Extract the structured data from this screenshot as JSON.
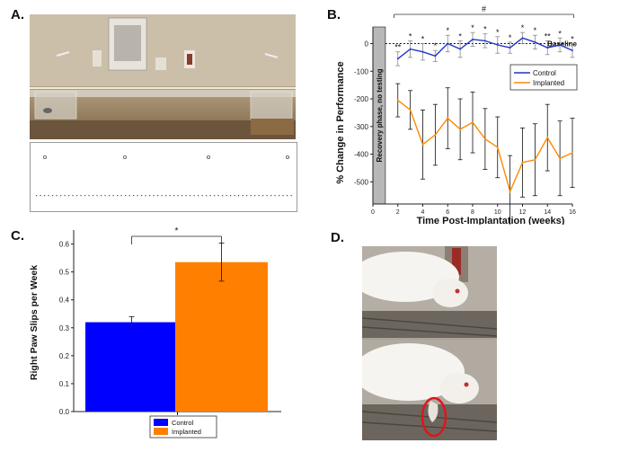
{
  "panels": {
    "a": "A.",
    "b": "B.",
    "c": "C.",
    "d": "D."
  },
  "chart_data": [
    {
      "type": "line",
      "id": "panel-b",
      "xlabel": "Time Post-Implantation (weeks)",
      "ylabel": "% Change in Performance",
      "x_ticks": [
        0,
        2,
        4,
        6,
        8,
        10,
        12,
        14,
        16
      ],
      "y_ticks": [
        0,
        -100,
        -200,
        -300,
        -400,
        -500
      ],
      "xlim": [
        0,
        16
      ],
      "ylim": [
        -580,
        60
      ],
      "baseline_label": "Baseline",
      "recovery_label": "Recovery phase, no testing",
      "hash_label": "#",
      "x": [
        2,
        3,
        4,
        5,
        6,
        7,
        8,
        9,
        10,
        11,
        12,
        13,
        14,
        15,
        16
      ],
      "series": [
        {
          "name": "Control",
          "color": "#2233cc",
          "values": [
            -55,
            -20,
            -30,
            -45,
            0,
            -20,
            15,
            10,
            -5,
            -15,
            20,
            5,
            -15,
            -5,
            -25
          ],
          "err": [
            25,
            30,
            30,
            20,
            30,
            30,
            25,
            25,
            30,
            20,
            20,
            25,
            25,
            25,
            25
          ]
        },
        {
          "name": "Implanted",
          "color": "#ff8800",
          "values": [
            -205,
            -240,
            -365,
            -330,
            -270,
            -310,
            -285,
            -345,
            -375,
            -535,
            -430,
            -420,
            -340,
            -415,
            -395
          ],
          "err": [
            60,
            70,
            125,
            110,
            110,
            110,
            110,
            110,
            110,
            130,
            125,
            130,
            120,
            135,
            125
          ]
        }
      ],
      "significance": [
        "**",
        "*",
        "*",
        "*",
        "*",
        "*",
        "*",
        "*",
        "*",
        "*",
        "*",
        "*",
        "**",
        "*",
        "*"
      ]
    },
    {
      "type": "bar",
      "id": "panel-c",
      "ylabel": "Right Paw Slips per Week",
      "categories": [
        "Control",
        "Implanted"
      ],
      "values": [
        0.32,
        0.535
      ],
      "err": [
        0.02,
        0.068
      ],
      "colors": [
        "#0000ff",
        "#ff8000"
      ],
      "ylim": [
        0,
        0.65
      ],
      "y_ticks": [
        "0.0",
        "0.1",
        "0.2",
        "0.3",
        "0.4",
        "0.5",
        "0.6"
      ],
      "significance": "*"
    }
  ]
}
